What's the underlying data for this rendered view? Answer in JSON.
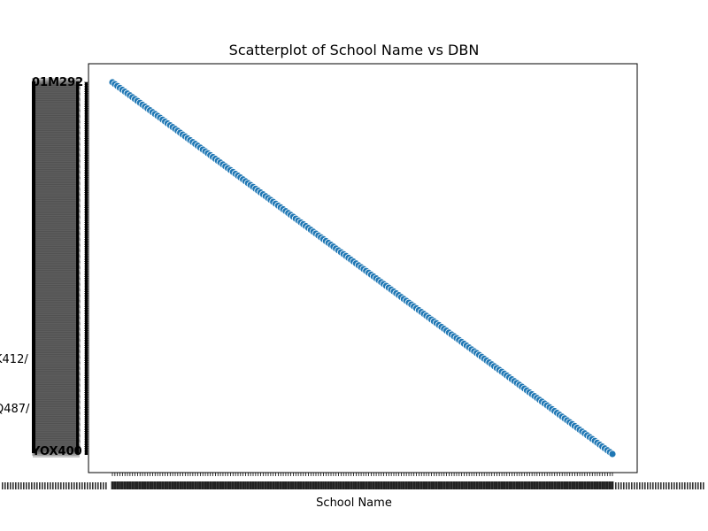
{
  "chart_data": {
    "type": "scatter",
    "title": "Scatterplot of School Name vs DBN",
    "xlabel": "School Name",
    "ylabel": "",
    "n_points": 200,
    "x_index_range": [
      0,
      199
    ],
    "y_index_range": [
      0,
      199
    ],
    "visible_y_tick_fragments": [
      "01M292",
      "K412/",
      "Q487/",
      "YOX400"
    ],
    "marker_color": "#1f77b4",
    "marker_edge_color": "#ffffff",
    "grid": false,
    "legend": "none"
  }
}
